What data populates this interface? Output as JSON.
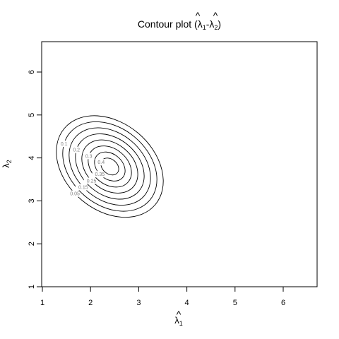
{
  "chart_data": {
    "type": "contour",
    "title": {
      "prefix": "Contour plot (",
      "sym1": "λ",
      "sub1": "1",
      "sep": "-",
      "sym2": "λ",
      "sub2": "2",
      "suffix": ")"
    },
    "xlabel": {
      "sym": "λ",
      "sub": "1",
      "hat": true
    },
    "ylabel": {
      "sym": "λ",
      "sub": "2"
    },
    "xlim": [
      1,
      6.7
    ],
    "ylim": [
      1,
      6.7
    ],
    "xticks": [
      1,
      2,
      3,
      4,
      5,
      6
    ],
    "yticks": [
      1,
      2,
      3,
      4,
      5,
      6
    ],
    "grid": false,
    "legend": "none",
    "contour_center": [
      2.4,
      3.8
    ],
    "levels": [
      {
        "label": "0.05",
        "value": 0.05
      },
      {
        "label": "0.1",
        "value": 0.1
      },
      {
        "label": "0.15",
        "value": 0.15
      },
      {
        "label": "0.2",
        "value": 0.2
      },
      {
        "label": "0.25",
        "value": 0.25
      },
      {
        "label": "0.3",
        "value": 0.3
      },
      {
        "label": "0.35",
        "value": 0.35
      },
      {
        "label": "0.4",
        "value": 0.4
      }
    ]
  }
}
